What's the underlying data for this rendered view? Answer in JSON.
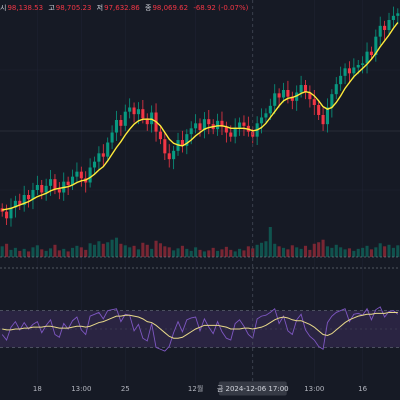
{
  "ohlc": {
    "open_label": "시",
    "open": "98,138.53",
    "high_label": "고",
    "high": "98,705.23",
    "low_label": "저",
    "low": "97,632.86",
    "close_label": "종",
    "close": "98,069.62",
    "change": "-68.92 (-0.07%)"
  },
  "crosshair": {
    "date_label": "금  2024-12-06  17:00"
  },
  "colors": {
    "background": "#161a25",
    "up": "#089981",
    "down": "#f23645",
    "ma": "#ffeb3b",
    "rsi": "#7e57c2",
    "rsi_ma": "#e8d98a",
    "rsi_band": "#2a2442",
    "grid": "#1f2333",
    "crosshair": "#4a4f5e"
  },
  "chart_data": {
    "type": "candlestick",
    "price_series": {
      "name": "",
      "close": [
        92.6,
        91.8,
        93.1,
        93.9,
        93.4,
        94.6,
        94.1,
        95.2,
        95.8,
        94.9,
        95.7,
        96.5,
        95.3,
        94.9,
        96.2,
        95.8,
        96.8,
        97.4,
        96.6,
        96.1,
        97.9,
        98.6,
        99.6,
        99.2,
        100.9,
        102.1,
        103.6,
        102.9,
        104.6,
        105.1,
        104.3,
        104.9,
        103.8,
        103.1,
        104.5,
        102.2,
        101.3,
        99.6,
        98.9,
        99.9,
        101.2,
        100.5,
        101.9,
        102.6,
        103.2,
        102.4,
        103.7,
        103.1,
        102.5,
        103.5,
        102.8,
        102.1,
        101.6,
        102.7,
        103.3,
        102.9,
        102.2,
        101.6,
        103.2,
        103.9,
        104.4,
        105.3,
        106.8,
        106.3,
        107.2,
        106.4,
        105.9,
        106.9,
        107.8,
        106.9,
        106.1,
        105.4,
        104.2,
        103.1,
        105.1,
        106.7,
        107.9,
        108.9,
        109.8,
        109.2,
        109.9,
        110.2,
        110.4,
        111.8,
        111.4,
        113.6,
        114.9,
        114.4,
        115.6,
        116.1,
        116.4
      ],
      "moving_average": [
        92.8,
        92.9,
        93.0,
        93.2,
        93.4,
        93.6,
        93.8,
        94.1,
        94.4,
        94.6,
        94.8,
        95.1,
        95.3,
        95.4,
        95.5,
        95.6,
        95.8,
        96.1,
        96.3,
        96.4,
        96.7,
        97.1,
        97.6,
        98.0,
        98.7,
        99.5,
        100.3,
        101.0,
        101.8,
        102.5,
        103.1,
        103.5,
        103.7,
        103.7,
        103.7,
        103.4,
        102.9,
        102.1,
        101.3,
        100.8,
        100.6,
        100.5,
        100.8,
        101.2,
        101.7,
        102.1,
        102.5,
        102.7,
        102.8,
        102.9,
        102.9,
        102.8,
        102.6,
        102.6,
        102.6,
        102.6,
        102.5,
        102.3,
        102.4,
        102.7,
        103.2,
        103.9,
        104.6,
        105.3,
        105.9,
        106.2,
        106.3,
        106.5,
        106.8,
        107.0,
        106.9,
        106.5,
        105.9,
        105.2,
        104.9,
        105.1,
        105.7,
        106.5,
        107.4,
        108.1,
        108.8,
        109.3,
        109.8,
        110.3,
        110.9,
        111.6,
        112.4,
        113.1,
        113.8,
        114.6,
        115.3
      ],
      "y_range": [
        88,
        118
      ]
    },
    "volume": {
      "name": "",
      "values": [
        2.1,
        2.6,
        1.4,
        1.8,
        1.2,
        1.6,
        1.1,
        1.9,
        2.3,
        1.5,
        1.2,
        1.7,
        2.4,
        1.3,
        1.6,
        1.1,
        1.8,
        2.2,
        1.9,
        1.4,
        2.7,
        2.4,
        3.1,
        2.6,
        2.9,
        3.4,
        3.8,
        2.6,
        2.3,
        1.9,
        2.2,
        1.5,
        2.8,
        2.4,
        1.6,
        3.2,
        2.7,
        2.1,
        1.9,
        1.3,
        1.7,
        2.2,
        1.6,
        1.2,
        1.9,
        1.4,
        1.1,
        1.3,
        1.8,
        1.2,
        1.5,
        2.0,
        1.4,
        1.1,
        1.6,
        1.3,
        2.1,
        1.7,
        2.4,
        2.8,
        3.1,
        5.9,
        2.6,
        2.1,
        1.8,
        1.5,
        2.3,
        1.9,
        1.6,
        2.2,
        1.4,
        2.6,
        2.9,
        3.4,
        2.1,
        1.8,
        2.4,
        1.9,
        1.5,
        1.7,
        1.2,
        1.6,
        1.8,
        2.2,
        1.5,
        1.9,
        2.7,
        2.1,
        2.4,
        1.8,
        2.3
      ]
    },
    "rsi": {
      "name": "",
      "values": [
        44,
        38,
        52,
        58,
        49,
        57,
        50,
        55,
        58,
        46,
        54,
        60,
        44,
        41,
        56,
        50,
        59,
        63,
        49,
        44,
        64,
        66,
        68,
        61,
        70,
        71,
        72,
        58,
        66,
        65,
        48,
        55,
        40,
        37,
        56,
        30,
        28,
        26,
        31,
        46,
        58,
        47,
        60,
        62,
        63,
        48,
        61,
        52,
        45,
        58,
        47,
        40,
        38,
        56,
        60,
        53,
        44,
        40,
        61,
        64,
        65,
        68,
        72,
        56,
        64,
        48,
        44,
        60,
        66,
        49,
        42,
        38,
        31,
        28,
        57,
        64,
        68,
        70,
        72,
        58,
        66,
        67,
        65,
        72,
        60,
        71,
        74,
        63,
        69,
        70,
        66
      ],
      "moving_average": [
        50,
        49,
        49,
        50,
        50,
        51,
        51,
        52,
        52,
        52,
        53,
        53,
        52,
        51,
        51,
        51,
        52,
        53,
        53,
        52,
        53,
        55,
        57,
        58,
        60,
        62,
        64,
        64,
        65,
        65,
        64,
        63,
        61,
        58,
        57,
        54,
        50,
        46,
        42,
        40,
        40,
        41,
        44,
        47,
        50,
        52,
        54,
        54,
        54,
        54,
        53,
        52,
        50,
        50,
        50,
        51,
        51,
        50,
        51,
        52,
        54,
        57,
        60,
        62,
        63,
        62,
        60,
        59,
        59,
        57,
        55,
        52,
        48,
        44,
        43,
        45,
        49,
        53,
        57,
        60,
        62,
        64,
        65,
        66,
        66,
        67,
        67,
        67,
        68,
        68,
        68
      ],
      "y_range": [
        0,
        100
      ],
      "band": [
        30,
        70
      ]
    },
    "x_tick_labels": [
      {
        "index": 8,
        "label": "18"
      },
      {
        "index": 18,
        "label": "13:00"
      },
      {
        "index": 28,
        "label": "25"
      },
      {
        "index": 44,
        "label": "12월"
      },
      {
        "index": 71,
        "label": "13:00"
      },
      {
        "index": 82,
        "label": "16"
      }
    ],
    "crosshair_index": 57,
    "grid": true
  }
}
